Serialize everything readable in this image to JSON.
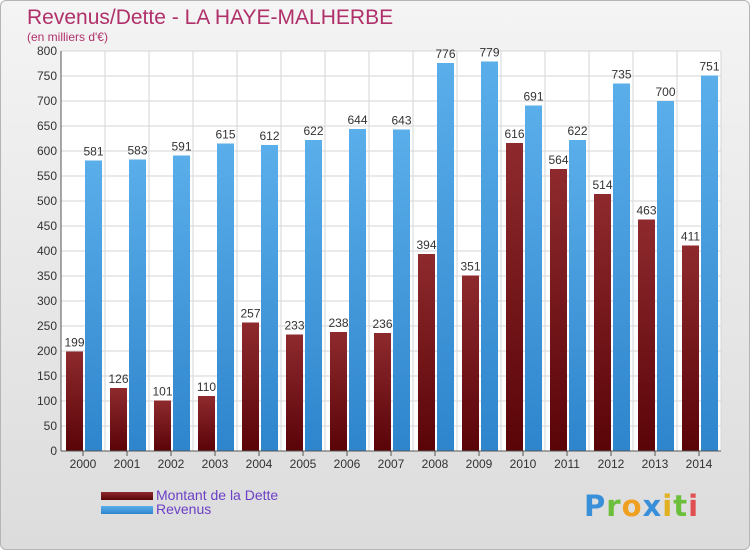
{
  "title": "Revenus/Dette - LA HAYE-MALHERBE",
  "subtitle": "(en milliers d'€)",
  "brand": {
    "letters": [
      "P",
      "r",
      "o",
      "x",
      "i",
      "t",
      "i"
    ],
    "colors": [
      "#3a8fd9",
      "#6cbf3a",
      "#f0a020",
      "#3a8fd9",
      "#e0b020",
      "#6cbf3a",
      "#e05050"
    ]
  },
  "colors": {
    "dette": "#7a1a20",
    "revenus": "#4aa3e6"
  },
  "chart_data": {
    "type": "bar",
    "categories": [
      "2000",
      "2001",
      "2002",
      "2003",
      "2004",
      "2005",
      "2006",
      "2007",
      "2008",
      "2009",
      "2010",
      "2011",
      "2012",
      "2013",
      "2014"
    ],
    "series": [
      {
        "name": "Montant de la Dette",
        "values": [
          199,
          126,
          101,
          110,
          257,
          233,
          238,
          236,
          394,
          351,
          616,
          564,
          514,
          463,
          411
        ]
      },
      {
        "name": "Revenus",
        "values": [
          581,
          583,
          591,
          615,
          612,
          622,
          644,
          643,
          776,
          779,
          691,
          622,
          735,
          700,
          751
        ]
      }
    ],
    "ylim": [
      0,
      800
    ],
    "yticks": [
      0,
      50,
      100,
      150,
      200,
      250,
      300,
      350,
      400,
      450,
      500,
      550,
      600,
      650,
      700,
      750,
      800
    ],
    "grid": true,
    "legend": "bottom-left"
  }
}
